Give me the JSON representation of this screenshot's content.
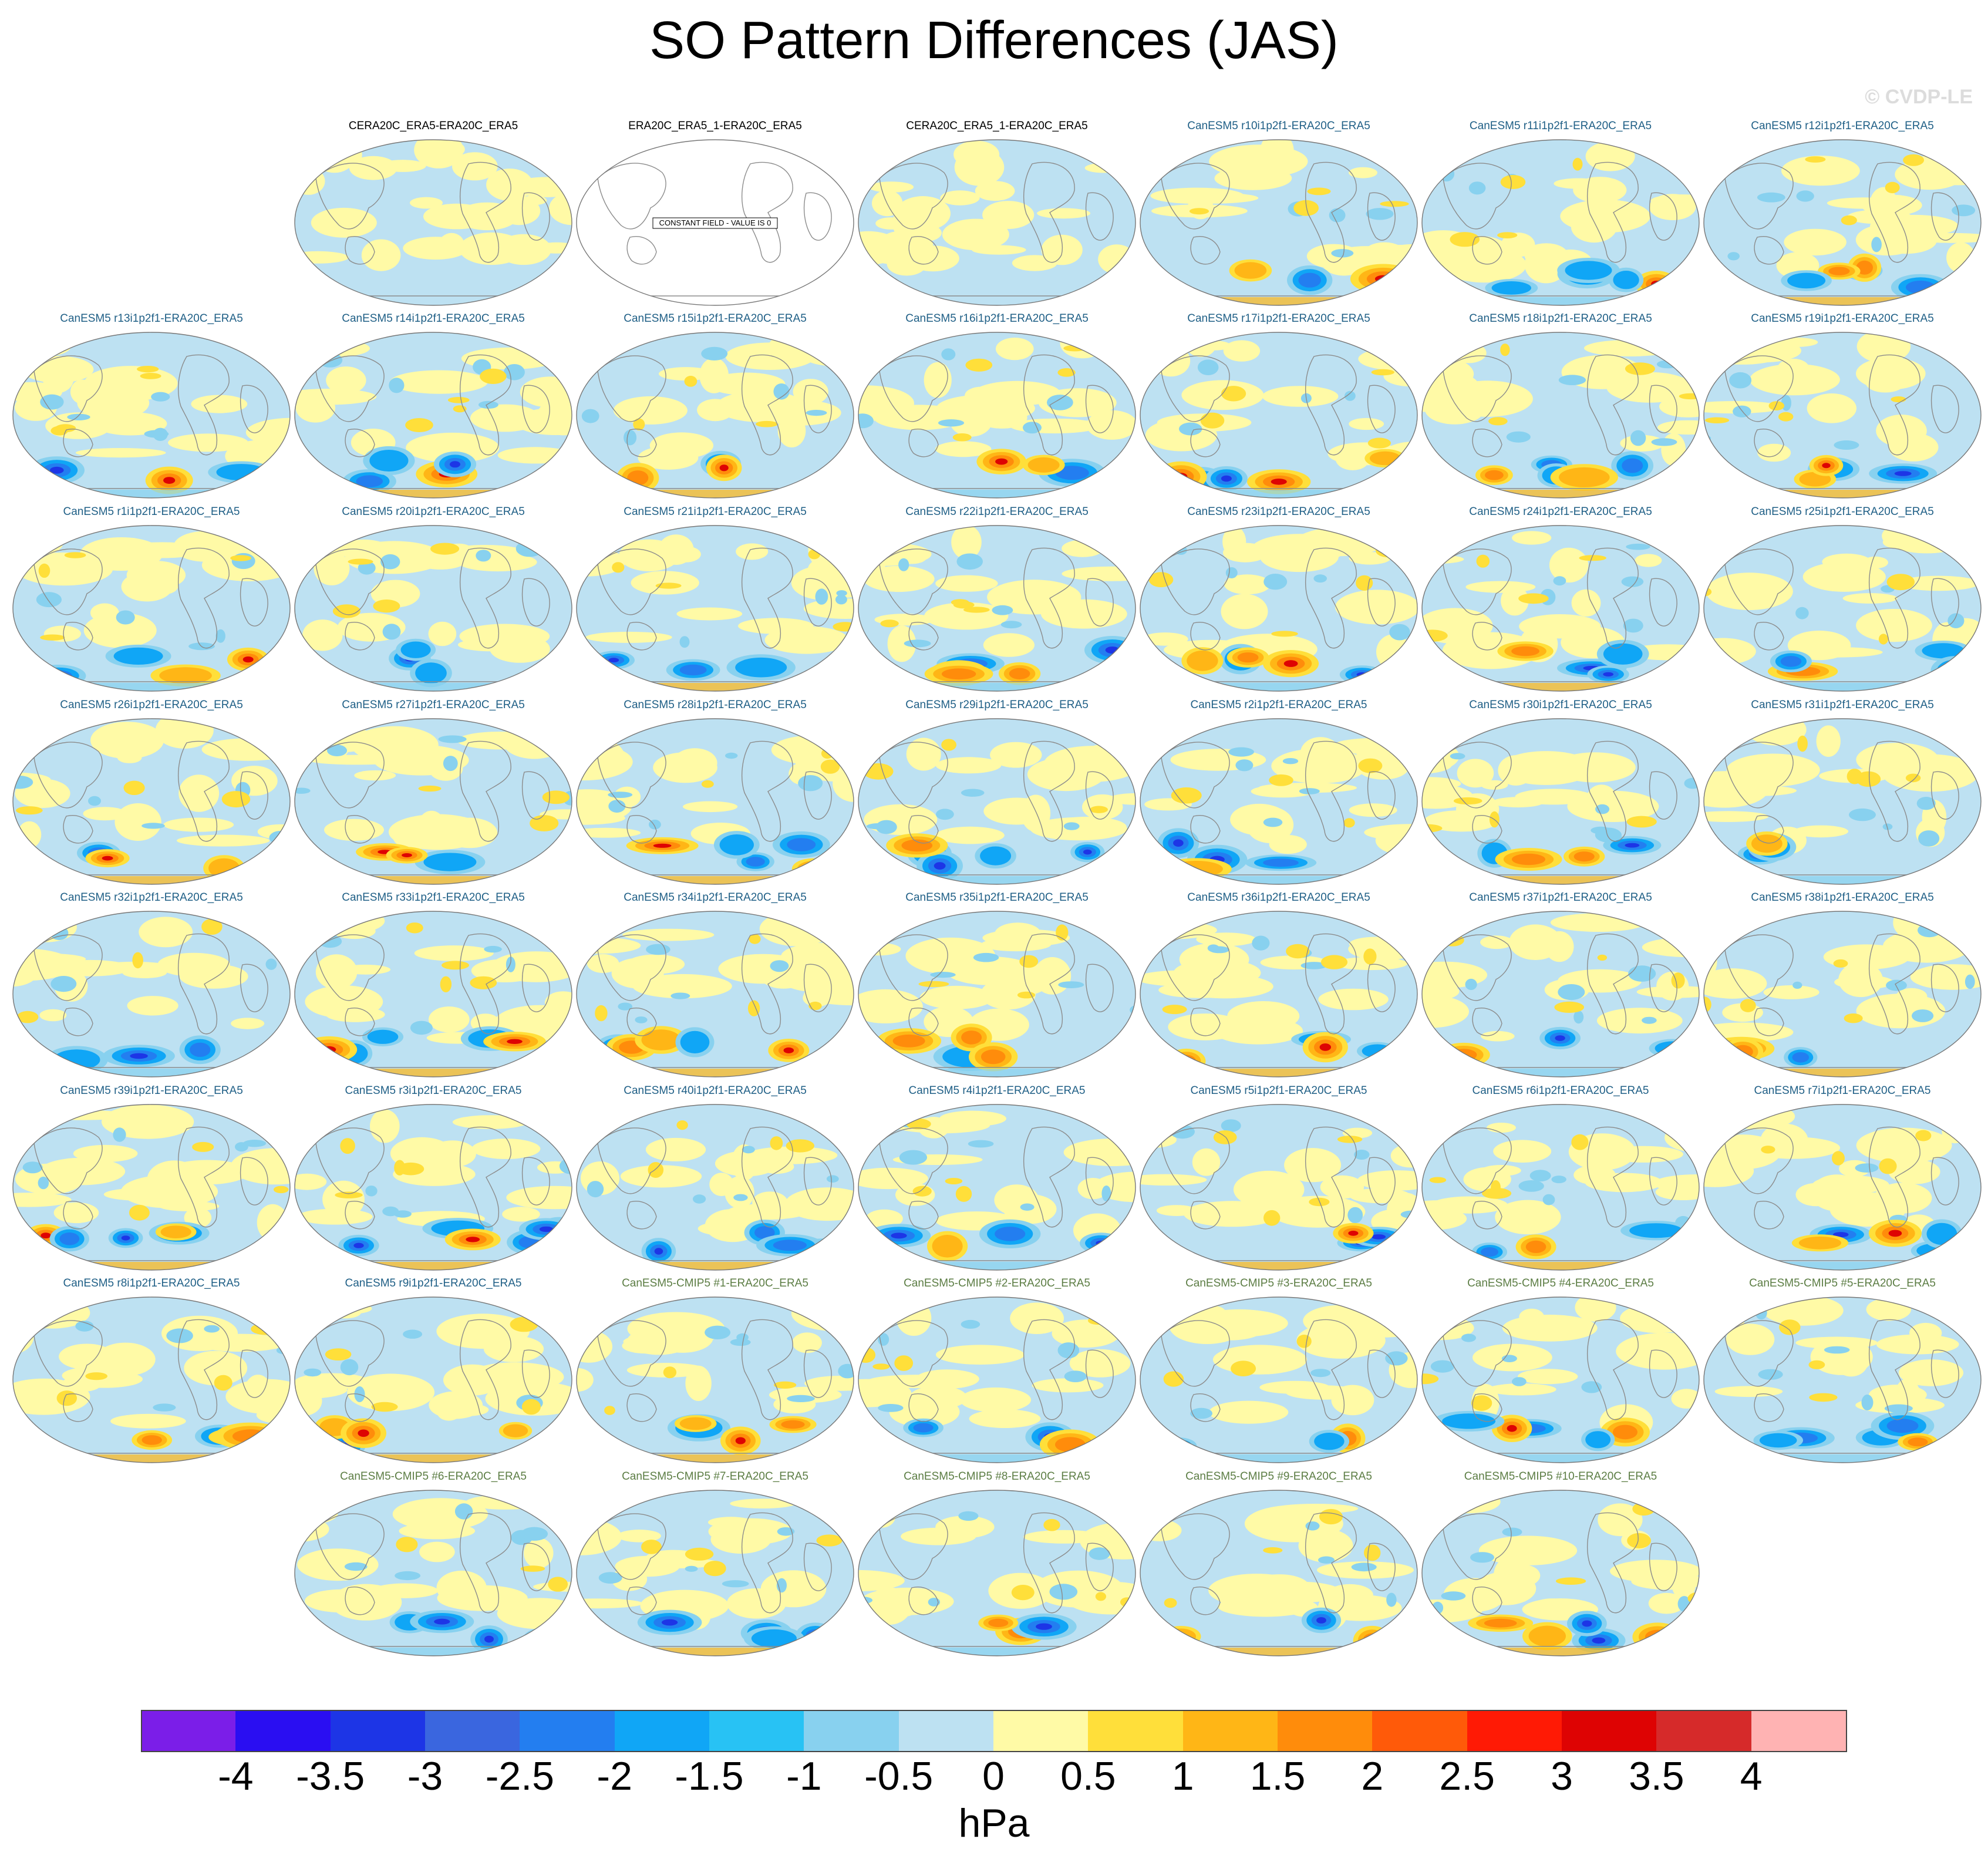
{
  "title": "SO Pattern Differences (JAS)",
  "watermark": "© CVDP-LE",
  "units": "hPa",
  "colorbar": {
    "labels": [
      "-4",
      "-3.5",
      "-3",
      "-2.5",
      "-2",
      "-1.5",
      "-1",
      "-0.5",
      "0",
      "0.5",
      "1",
      "1.5",
      "2",
      "2.5",
      "3",
      "3.5",
      "4"
    ],
    "colors": [
      "#7b1ee8",
      "#2a0ef2",
      "#1d35e6",
      "#3a66df",
      "#237ef0",
      "#10a6f6",
      "#28c2f4",
      "#88d1ef",
      "#bde1f2",
      "#fffaa6",
      "#ffdf3a",
      "#ffb616",
      "#ff8c0b",
      "#ff5a09",
      "#ff1a05",
      "#de0303",
      "#d62a2a",
      "#ffb3b3"
    ]
  },
  "panels": [
    {
      "title": "CERA20C_ERA5-ERA20C_ERA5",
      "kind": "obs",
      "row": 0,
      "col": 1
    },
    {
      "title": "ERA20C_ERA5_1-ERA20C_ERA5",
      "kind": "obs",
      "row": 0,
      "col": 2,
      "constant": "CONSTANT FIELD - VALUE IS 0"
    },
    {
      "title": "CERA20C_ERA5_1-ERA20C_ERA5",
      "kind": "obs",
      "row": 0,
      "col": 3
    },
    {
      "title": "CanESM5 r10i1p2f1-ERA20C_ERA5",
      "kind": "mem",
      "row": 0,
      "col": 4
    },
    {
      "title": "CanESM5 r11i1p2f1-ERA20C_ERA5",
      "kind": "mem",
      "row": 0,
      "col": 5
    },
    {
      "title": "CanESM5 r12i1p2f1-ERA20C_ERA5",
      "kind": "mem",
      "row": 0,
      "col": 6
    },
    {
      "title": "CanESM5 r13i1p2f1-ERA20C_ERA5",
      "kind": "mem",
      "row": 1,
      "col": 0
    },
    {
      "title": "CanESM5 r14i1p2f1-ERA20C_ERA5",
      "kind": "mem",
      "row": 1,
      "col": 1
    },
    {
      "title": "CanESM5 r15i1p2f1-ERA20C_ERA5",
      "kind": "mem",
      "row": 1,
      "col": 2
    },
    {
      "title": "CanESM5 r16i1p2f1-ERA20C_ERA5",
      "kind": "mem",
      "row": 1,
      "col": 3
    },
    {
      "title": "CanESM5 r17i1p2f1-ERA20C_ERA5",
      "kind": "mem",
      "row": 1,
      "col": 4
    },
    {
      "title": "CanESM5 r18i1p2f1-ERA20C_ERA5",
      "kind": "mem",
      "row": 1,
      "col": 5
    },
    {
      "title": "CanESM5 r19i1p2f1-ERA20C_ERA5",
      "kind": "mem",
      "row": 1,
      "col": 6
    },
    {
      "title": "CanESM5 r1i1p2f1-ERA20C_ERA5",
      "kind": "mem",
      "row": 2,
      "col": 0
    },
    {
      "title": "CanESM5 r20i1p2f1-ERA20C_ERA5",
      "kind": "mem",
      "row": 2,
      "col": 1
    },
    {
      "title": "CanESM5 r21i1p2f1-ERA20C_ERA5",
      "kind": "mem",
      "row": 2,
      "col": 2
    },
    {
      "title": "CanESM5 r22i1p2f1-ERA20C_ERA5",
      "kind": "mem",
      "row": 2,
      "col": 3
    },
    {
      "title": "CanESM5 r23i1p2f1-ERA20C_ERA5",
      "kind": "mem",
      "row": 2,
      "col": 4
    },
    {
      "title": "CanESM5 r24i1p2f1-ERA20C_ERA5",
      "kind": "mem",
      "row": 2,
      "col": 5
    },
    {
      "title": "CanESM5 r25i1p2f1-ERA20C_ERA5",
      "kind": "mem",
      "row": 2,
      "col": 6
    },
    {
      "title": "CanESM5 r26i1p2f1-ERA20C_ERA5",
      "kind": "mem",
      "row": 3,
      "col": 0
    },
    {
      "title": "CanESM5 r27i1p2f1-ERA20C_ERA5",
      "kind": "mem",
      "row": 3,
      "col": 1
    },
    {
      "title": "CanESM5 r28i1p2f1-ERA20C_ERA5",
      "kind": "mem",
      "row": 3,
      "col": 2
    },
    {
      "title": "CanESM5 r29i1p2f1-ERA20C_ERA5",
      "kind": "mem",
      "row": 3,
      "col": 3
    },
    {
      "title": "CanESM5 r2i1p2f1-ERA20C_ERA5",
      "kind": "mem",
      "row": 3,
      "col": 4
    },
    {
      "title": "CanESM5 r30i1p2f1-ERA20C_ERA5",
      "kind": "mem",
      "row": 3,
      "col": 5
    },
    {
      "title": "CanESM5 r31i1p2f1-ERA20C_ERA5",
      "kind": "mem",
      "row": 3,
      "col": 6
    },
    {
      "title": "CanESM5 r32i1p2f1-ERA20C_ERA5",
      "kind": "mem",
      "row": 4,
      "col": 0
    },
    {
      "title": "CanESM5 r33i1p2f1-ERA20C_ERA5",
      "kind": "mem",
      "row": 4,
      "col": 1
    },
    {
      "title": "CanESM5 r34i1p2f1-ERA20C_ERA5",
      "kind": "mem",
      "row": 4,
      "col": 2
    },
    {
      "title": "CanESM5 r35i1p2f1-ERA20C_ERA5",
      "kind": "mem",
      "row": 4,
      "col": 3
    },
    {
      "title": "CanESM5 r36i1p2f1-ERA20C_ERA5",
      "kind": "mem",
      "row": 4,
      "col": 4
    },
    {
      "title": "CanESM5 r37i1p2f1-ERA20C_ERA5",
      "kind": "mem",
      "row": 4,
      "col": 5
    },
    {
      "title": "CanESM5 r38i1p2f1-ERA20C_ERA5",
      "kind": "mem",
      "row": 4,
      "col": 6
    },
    {
      "title": "CanESM5 r39i1p2f1-ERA20C_ERA5",
      "kind": "mem",
      "row": 5,
      "col": 0
    },
    {
      "title": "CanESM5 r3i1p2f1-ERA20C_ERA5",
      "kind": "mem",
      "row": 5,
      "col": 1
    },
    {
      "title": "CanESM5 r40i1p2f1-ERA20C_ERA5",
      "kind": "mem",
      "row": 5,
      "col": 2
    },
    {
      "title": "CanESM5 r4i1p2f1-ERA20C_ERA5",
      "kind": "mem",
      "row": 5,
      "col": 3
    },
    {
      "title": "CanESM5 r5i1p2f1-ERA20C_ERA5",
      "kind": "mem",
      "row": 5,
      "col": 4
    },
    {
      "title": "CanESM5 r6i1p2f1-ERA20C_ERA5",
      "kind": "mem",
      "row": 5,
      "col": 5
    },
    {
      "title": "CanESM5 r7i1p2f1-ERA20C_ERA5",
      "kind": "mem",
      "row": 5,
      "col": 6
    },
    {
      "title": "CanESM5 r8i1p2f1-ERA20C_ERA5",
      "kind": "mem",
      "row": 6,
      "col": 0
    },
    {
      "title": "CanESM5 r9i1p2f1-ERA20C_ERA5",
      "kind": "mem",
      "row": 6,
      "col": 1
    },
    {
      "title": "CanESM5-CMIP5 #1-ERA20C_ERA5",
      "kind": "cmip",
      "row": 6,
      "col": 2
    },
    {
      "title": "CanESM5-CMIP5 #2-ERA20C_ERA5",
      "kind": "cmip",
      "row": 6,
      "col": 3
    },
    {
      "title": "CanESM5-CMIP5 #3-ERA20C_ERA5",
      "kind": "cmip",
      "row": 6,
      "col": 4
    },
    {
      "title": "CanESM5-CMIP5 #4-ERA20C_ERA5",
      "kind": "cmip",
      "row": 6,
      "col": 5
    },
    {
      "title": "CanESM5-CMIP5 #5-ERA20C_ERA5",
      "kind": "cmip",
      "row": 6,
      "col": 6
    },
    {
      "title": "CanESM5-CMIP5 #6-ERA20C_ERA5",
      "kind": "cmip",
      "row": 7,
      "col": 1
    },
    {
      "title": "CanESM5-CMIP5 #7-ERA20C_ERA5",
      "kind": "cmip",
      "row": 7,
      "col": 2
    },
    {
      "title": "CanESM5-CMIP5 #8-ERA20C_ERA5",
      "kind": "cmip",
      "row": 7,
      "col": 3
    },
    {
      "title": "CanESM5-CMIP5 #9-ERA20C_ERA5",
      "kind": "cmip",
      "row": 7,
      "col": 4
    },
    {
      "title": "CanESM5-CMIP5 #10-ERA20C_ERA5",
      "kind": "cmip",
      "row": 7,
      "col": 5
    }
  ]
}
